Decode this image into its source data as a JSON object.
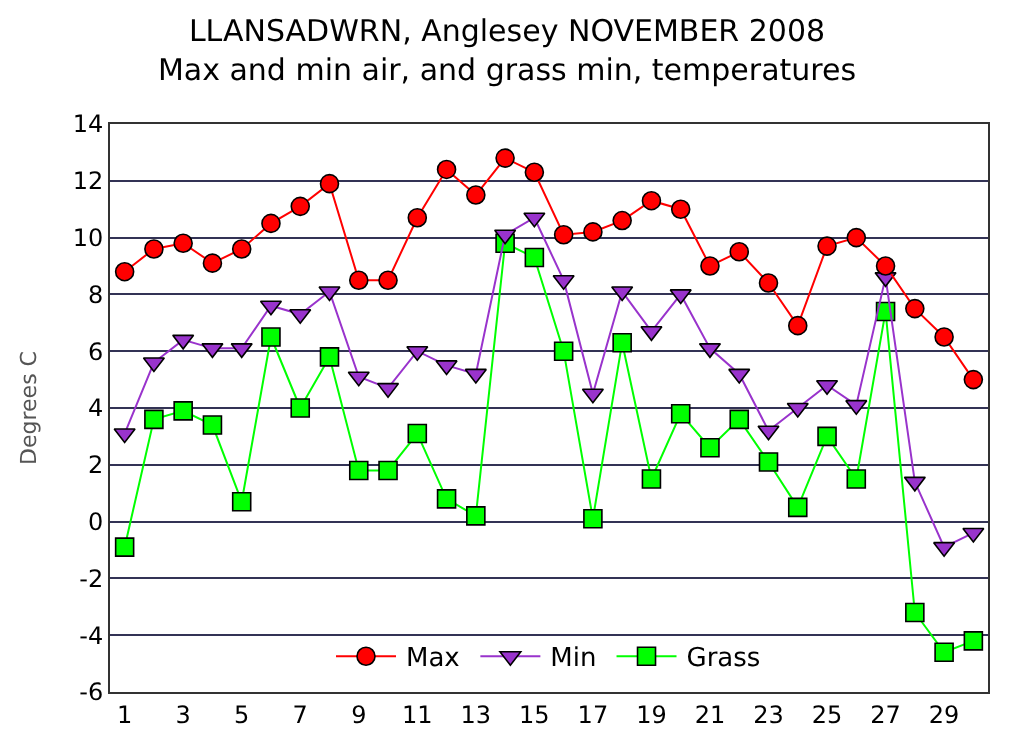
{
  "chart_data": {
    "type": "line",
    "title": "LLANSADWRN, Anglesey NOVEMBER 2008",
    "subtitle": "Max and min air, and grass min, temperatures",
    "ylabel": "Degrees C",
    "x": [
      1,
      2,
      3,
      4,
      5,
      6,
      7,
      8,
      9,
      10,
      11,
      12,
      13,
      14,
      15,
      16,
      17,
      18,
      19,
      20,
      21,
      22,
      23,
      24,
      25,
      26,
      27,
      28,
      29,
      30
    ],
    "xlim": [
      0.5,
      30.5
    ],
    "xticks": [
      1,
      3,
      5,
      7,
      9,
      11,
      13,
      15,
      17,
      19,
      21,
      23,
      25,
      27,
      29
    ],
    "ylim": [
      -6,
      14
    ],
    "yticks": [
      -6,
      -4,
      -2,
      0,
      2,
      4,
      6,
      8,
      10,
      12,
      14
    ],
    "grid": "y",
    "legend": "bottom",
    "series": [
      {
        "name": "Max",
        "color": "#ff0000",
        "marker": "circle",
        "values": [
          8.8,
          9.6,
          9.8,
          9.1,
          9.6,
          10.5,
          11.1,
          11.9,
          8.5,
          8.5,
          10.7,
          12.4,
          11.5,
          12.8,
          12.3,
          10.1,
          10.2,
          10.6,
          11.3,
          11.0,
          9.0,
          9.5,
          8.4,
          6.9,
          9.7,
          10.0,
          9.0,
          7.5,
          6.5,
          5.0
        ]
      },
      {
        "name": "Min",
        "color": "#9933cc",
        "marker": "triangle",
        "values": [
          3.1,
          5.6,
          6.4,
          6.1,
          6.1,
          7.6,
          7.3,
          8.1,
          5.1,
          4.7,
          6.0,
          5.5,
          5.2,
          10.1,
          10.7,
          8.5,
          4.5,
          8.1,
          6.7,
          8.0,
          6.1,
          5.2,
          3.2,
          4.0,
          4.8,
          4.1,
          8.6,
          1.4,
          -0.9,
          -0.4
        ]
      },
      {
        "name": "Grass",
        "color": "#00ff00",
        "marker": "square",
        "values": [
          -0.9,
          3.6,
          3.9,
          3.4,
          0.7,
          6.5,
          4.0,
          5.8,
          1.8,
          1.8,
          3.1,
          0.8,
          0.2,
          9.8,
          9.3,
          6.0,
          0.1,
          6.3,
          1.5,
          3.8,
          2.6,
          3.6,
          2.1,
          0.5,
          3.0,
          1.5,
          7.4,
          -3.2,
          -4.6,
          -4.2
        ]
      }
    ]
  }
}
